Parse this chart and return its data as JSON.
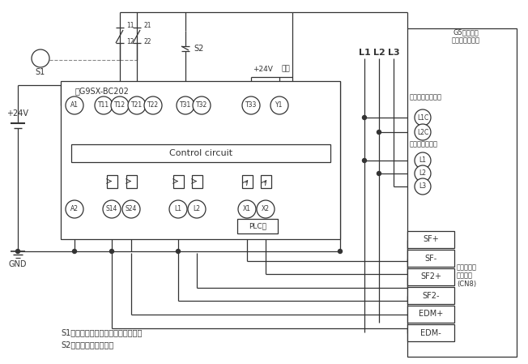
{
  "bg_color": "#ffffff",
  "line_color": "#333333",
  "safety_relay_label": "形G9SX-BC202",
  "control_circuit_label": "Control circuit",
  "gs_series_label": "G5シリーズ\nサーボドライバ",
  "seiki_label": "制御回路電源端子",
  "shuki_label": "主回路電源端子",
  "safety_connector_label": "セーフティ\nコネクタ\n(CN8)",
  "top_terminals": [
    "A1",
    "T11",
    "T12",
    "T21",
    "T22",
    "T31",
    "T32",
    "T33",
    "Y1"
  ],
  "bottom_terminals": [
    "A2",
    "S14",
    "S24",
    "L1",
    "L2",
    "X1",
    "X2"
  ],
  "right_circle_terminals": [
    "L1C",
    "L2C",
    "L1",
    "L2",
    "L3"
  ],
  "right_box_terminals": [
    "SF+",
    "SF-",
    "SF2+",
    "SF2-",
    "EDM+",
    "EDM-"
  ],
  "power_label": "+24V",
  "gnd_label": "GND",
  "s1_label": "S1",
  "s2_label": "S2",
  "plus24v_label": "+24V",
  "kaibo_label": "開放",
  "l1_label": "L1",
  "l2_label": "L2",
  "l3_label": "L3",
  "s1_desc": "S1：非常停止用押しボタンスイッチ",
  "s2_desc": "S2：リセットスイッチ",
  "plc_label": "PLC等"
}
